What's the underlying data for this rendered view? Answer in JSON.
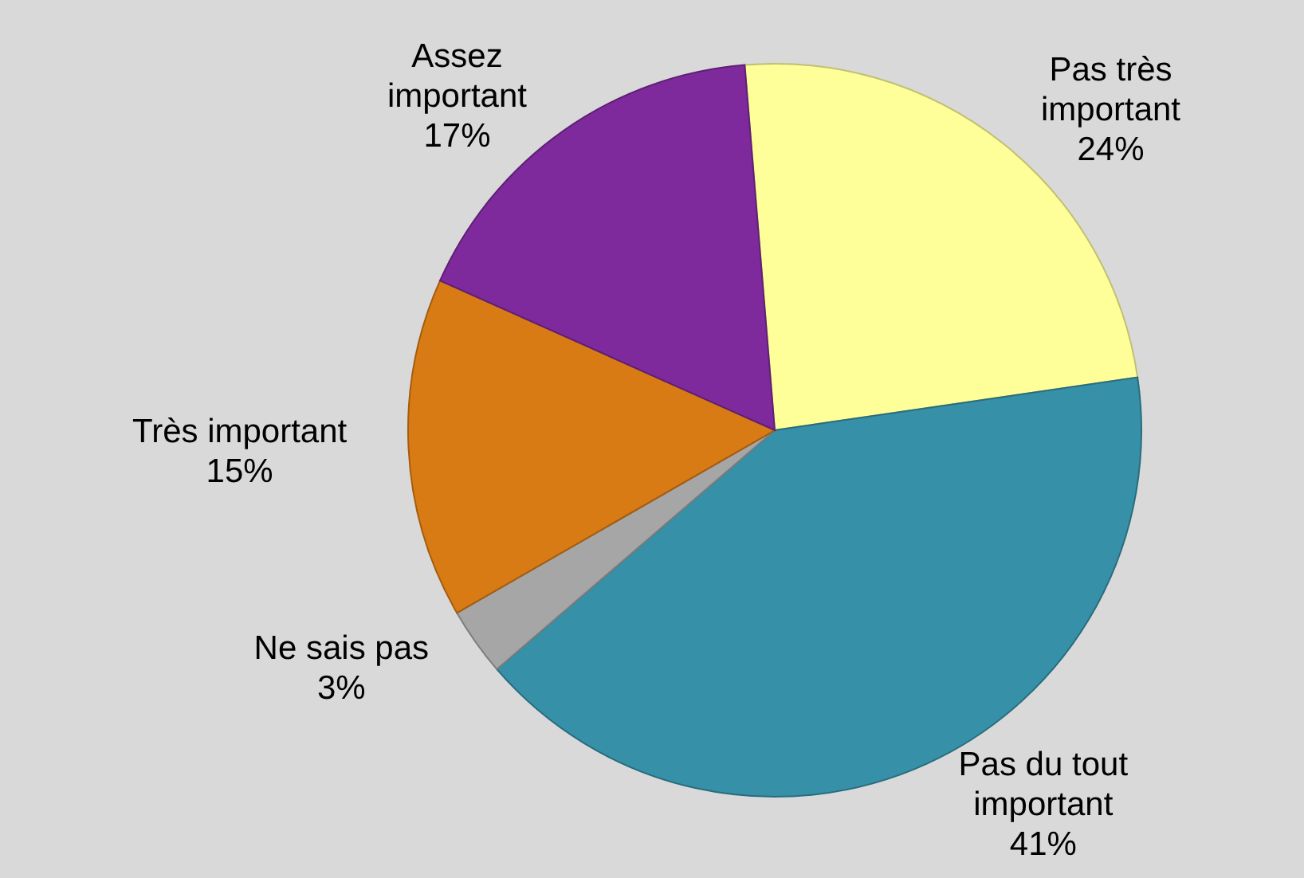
{
  "chart_data": {
    "type": "pie",
    "categories": [
      "Pas très important",
      "Pas du tout important",
      "Ne sais pas",
      "Très important",
      "Assez important"
    ],
    "values": [
      24,
      41,
      3,
      15,
      17
    ],
    "colors": [
      "#ffff99",
      "#3690a8",
      "#a6a6a6",
      "#d97b15",
      "#7f2a9c"
    ],
    "value_labels": [
      "24%",
      "41%",
      "3%",
      "15%",
      "17%"
    ]
  }
}
